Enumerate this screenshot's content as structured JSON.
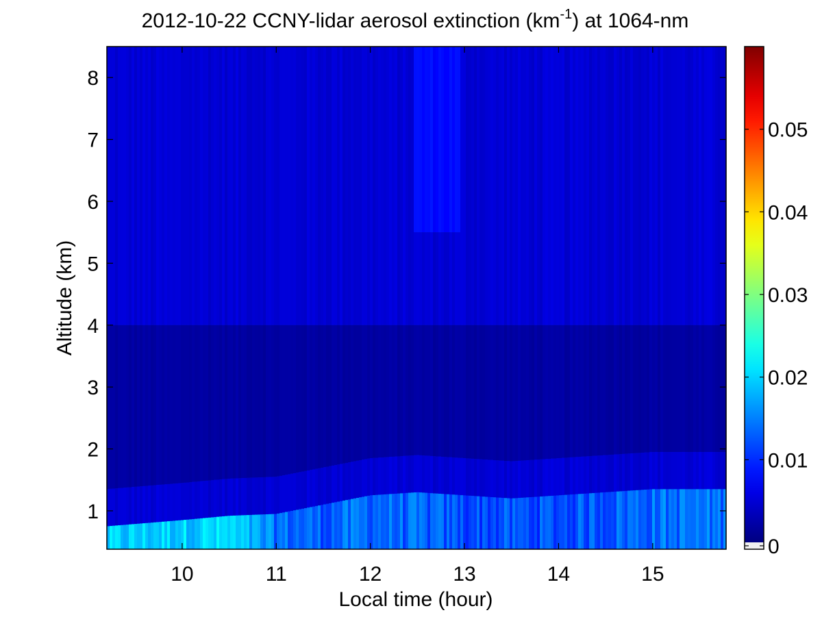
{
  "chart_data": {
    "type": "heatmap",
    "title": {
      "prefix": "2012-10-22 CCNY-lidar aerosol extinction (km",
      "superscript": "-1",
      "suffix": ") at 1064-nm"
    },
    "xlabel": "Local time (hour)",
    "ylabel": "Altitude (km)",
    "xlim": [
      9.2,
      15.78
    ],
    "ylim": [
      0.38,
      8.5
    ],
    "xticks": [
      10,
      11,
      12,
      13,
      14,
      15
    ],
    "yticks": [
      1,
      2,
      3,
      4,
      5,
      6,
      7,
      8
    ],
    "colorbar": {
      "range": [
        0,
        0.06
      ],
      "ticks": [
        "0",
        "0.01",
        "0.02",
        "0.03",
        "0.04",
        "0.05"
      ],
      "tick_values": [
        0,
        0.01,
        0.02,
        0.03,
        0.04,
        0.05
      ],
      "colormap": "jet",
      "under_color": "#f0f0f0"
    },
    "field": {
      "background": 0.005,
      "residual_layer": {
        "altitude_km": 3.0,
        "top_km": 4.0,
        "value": 0.002
      },
      "boundary_layer": [
        {
          "time": 9.2,
          "top_km": 0.75,
          "value": 0.019
        },
        {
          "time": 10.0,
          "top_km": 0.85,
          "value": 0.02
        },
        {
          "time": 10.5,
          "top_km": 0.92,
          "value": 0.02
        },
        {
          "time": 11.0,
          "top_km": 0.95,
          "value": 0.014
        },
        {
          "time": 11.5,
          "top_km": 1.1,
          "value": 0.013
        },
        {
          "time": 12.0,
          "top_km": 1.25,
          "value": 0.014
        },
        {
          "time": 12.5,
          "top_km": 1.3,
          "value": 0.013
        },
        {
          "time": 13.0,
          "top_km": 1.25,
          "value": 0.012
        },
        {
          "time": 13.5,
          "top_km": 1.2,
          "value": 0.012
        },
        {
          "time": 14.0,
          "top_km": 1.25,
          "value": 0.012
        },
        {
          "time": 14.5,
          "top_km": 1.3,
          "value": 0.013
        },
        {
          "time": 15.0,
          "top_km": 1.35,
          "value": 0.014
        },
        {
          "time": 15.78,
          "top_km": 1.35,
          "value": 0.014
        }
      ],
      "plume": {
        "time_start": 12.45,
        "time_end": 12.95,
        "bottom_km": 5.5,
        "value": 0.008
      }
    },
    "grid": false,
    "legend": "none"
  }
}
